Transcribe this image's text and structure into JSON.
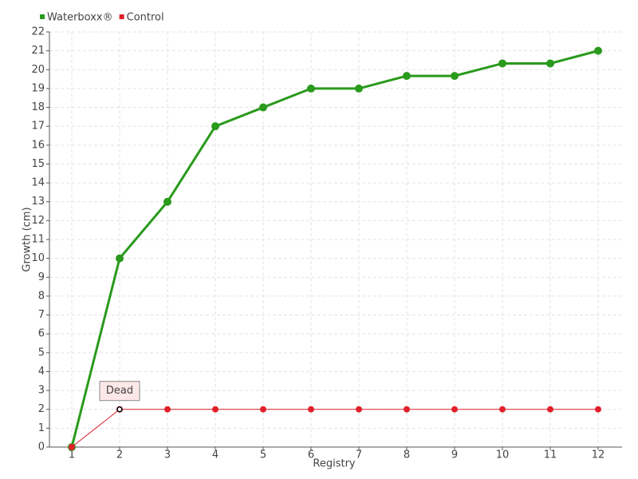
{
  "chart_data": {
    "type": "line",
    "x_label": "Registry",
    "y_label": "Growth (cm)",
    "categories": [
      "1",
      "2",
      "3",
      "4",
      "5",
      "6",
      "7",
      "8",
      "9",
      "10",
      "11",
      "12"
    ],
    "series": [
      {
        "name": "Waterboxx®",
        "color": "#2a9a1c",
        "values": [
          0,
          10,
          13,
          17,
          18,
          19,
          19,
          19.67,
          19.67,
          20.33,
          20.33,
          21
        ]
      },
      {
        "name": "Control",
        "color": "#e0202a",
        "values": [
          0,
          2,
          2,
          2,
          2,
          2,
          2,
          2,
          2,
          2,
          2,
          2
        ]
      }
    ],
    "annotations": [
      {
        "text": "Dead",
        "x": "2",
        "y": 2
      }
    ],
    "ylim": [
      0,
      22
    ],
    "yticks": [
      0,
      1,
      2,
      3,
      4,
      5,
      6,
      7,
      8,
      9,
      10,
      11,
      12,
      13,
      14,
      15,
      16,
      17,
      18,
      19,
      20,
      21,
      22
    ],
    "grid": true,
    "legend": "top-left"
  }
}
